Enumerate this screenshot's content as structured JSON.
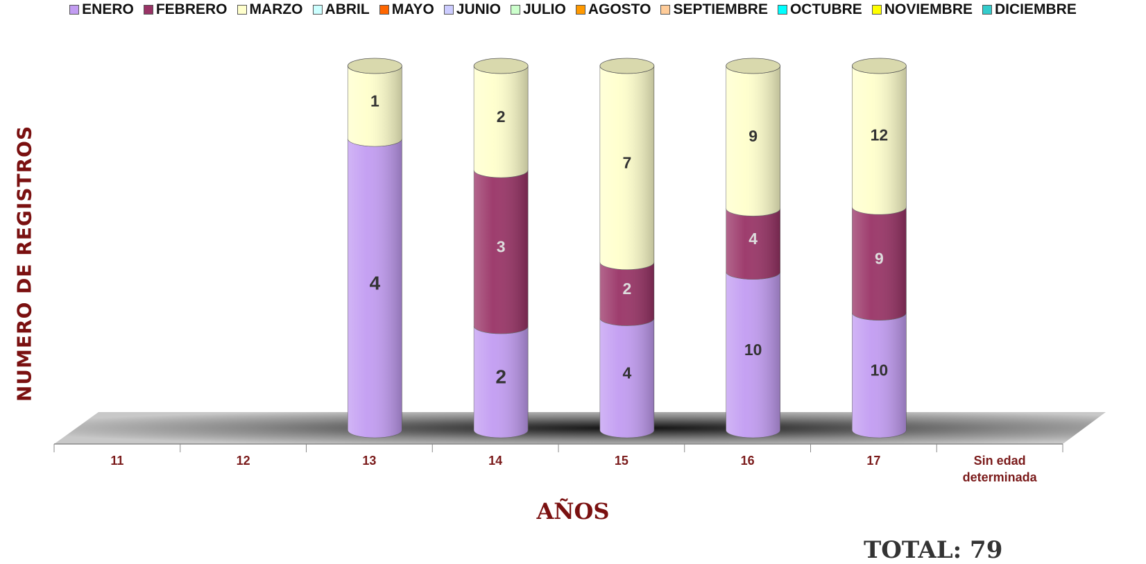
{
  "chart_data": {
    "type": "bar",
    "stacking": "percent",
    "shape": "cylinder",
    "categories": [
      "11",
      "12",
      "13",
      "14",
      "15",
      "16",
      "17",
      "Sin edad determinada"
    ],
    "series": [
      {
        "name": "ENERO",
        "color": "#c29cf2",
        "values": [
          null,
          null,
          4,
          2,
          4,
          10,
          10,
          null
        ]
      },
      {
        "name": "FEBRERO",
        "color": "#993366",
        "values": [
          null,
          null,
          null,
          3,
          2,
          4,
          9,
          null
        ]
      },
      {
        "name": "MARZO",
        "color": "#ffffcc",
        "values": [
          null,
          null,
          1,
          2,
          7,
          9,
          12,
          null
        ]
      },
      {
        "name": "ABRIL",
        "color": "#ccffff",
        "values": [
          null,
          null,
          null,
          null,
          null,
          null,
          null,
          null
        ]
      },
      {
        "name": "MAYO",
        "color": "#ff6600",
        "values": [
          null,
          null,
          null,
          null,
          null,
          null,
          null,
          null
        ]
      },
      {
        "name": "JUNIO",
        "color": "#ccccff",
        "values": [
          null,
          null,
          null,
          null,
          null,
          null,
          null,
          null
        ]
      },
      {
        "name": "JULIO",
        "color": "#ccffcc",
        "values": [
          null,
          null,
          null,
          null,
          null,
          null,
          null,
          null
        ]
      },
      {
        "name": "AGOSTO",
        "color": "#ff9900",
        "values": [
          null,
          null,
          null,
          null,
          null,
          null,
          null,
          null
        ]
      },
      {
        "name": "SEPTIEMBRE",
        "color": "#ffcc99",
        "values": [
          null,
          null,
          null,
          null,
          null,
          null,
          null,
          null
        ]
      },
      {
        "name": "OCTUBRE",
        "color": "#00ffff",
        "values": [
          null,
          null,
          null,
          null,
          null,
          null,
          null,
          null
        ]
      },
      {
        "name": "NOVIEMBRE",
        "color": "#ffff00",
        "values": [
          null,
          null,
          null,
          null,
          null,
          null,
          null,
          null
        ]
      },
      {
        "name": "DICIEMBRE",
        "color": "#33cccc",
        "values": [
          null,
          null,
          null,
          null,
          null,
          null,
          null,
          null
        ]
      }
    ],
    "y_label": "NUMERO DE REGISTROS",
    "x_label": "AÑOS",
    "annotation": "TOTAL: 79",
    "legend": "top"
  }
}
